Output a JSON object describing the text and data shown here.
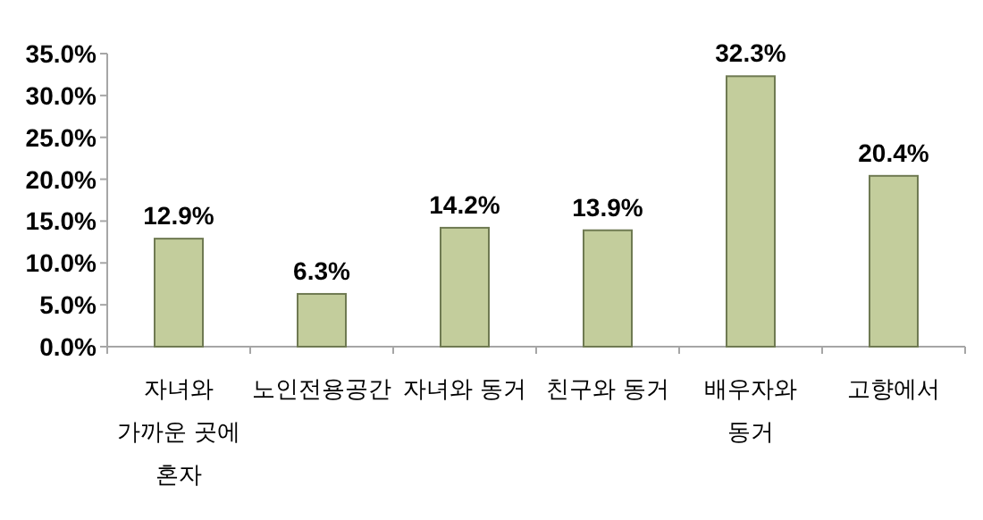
{
  "chart_data": {
    "type": "bar",
    "categories": [
      "자녀와 가까운 곳에 혼자",
      "노인전용공간",
      "자녀와 동거",
      "친구와 동거",
      "배우자와 동거",
      "고향에서"
    ],
    "values": [
      12.9,
      6.3,
      14.2,
      13.9,
      32.3,
      20.4
    ],
    "value_labels": [
      "12.9%",
      "6.3%",
      "14.2%",
      "13.9%",
      "32.3%",
      "20.4%"
    ],
    "color": "#c3cd9c",
    "ylim": [
      0,
      35
    ],
    "yticks": [
      {
        "value": 0,
        "label": "0.0%"
      },
      {
        "value": 5,
        "label": "5.0%"
      },
      {
        "value": 10,
        "label": "10.0%"
      },
      {
        "value": 15,
        "label": "15.0%"
      },
      {
        "value": 20,
        "label": "20.0%"
      },
      {
        "value": 25,
        "label": "25.0%"
      },
      {
        "value": 30,
        "label": "30.0%"
      },
      {
        "value": 35,
        "label": "35.0%"
      }
    ],
    "grid": false
  }
}
